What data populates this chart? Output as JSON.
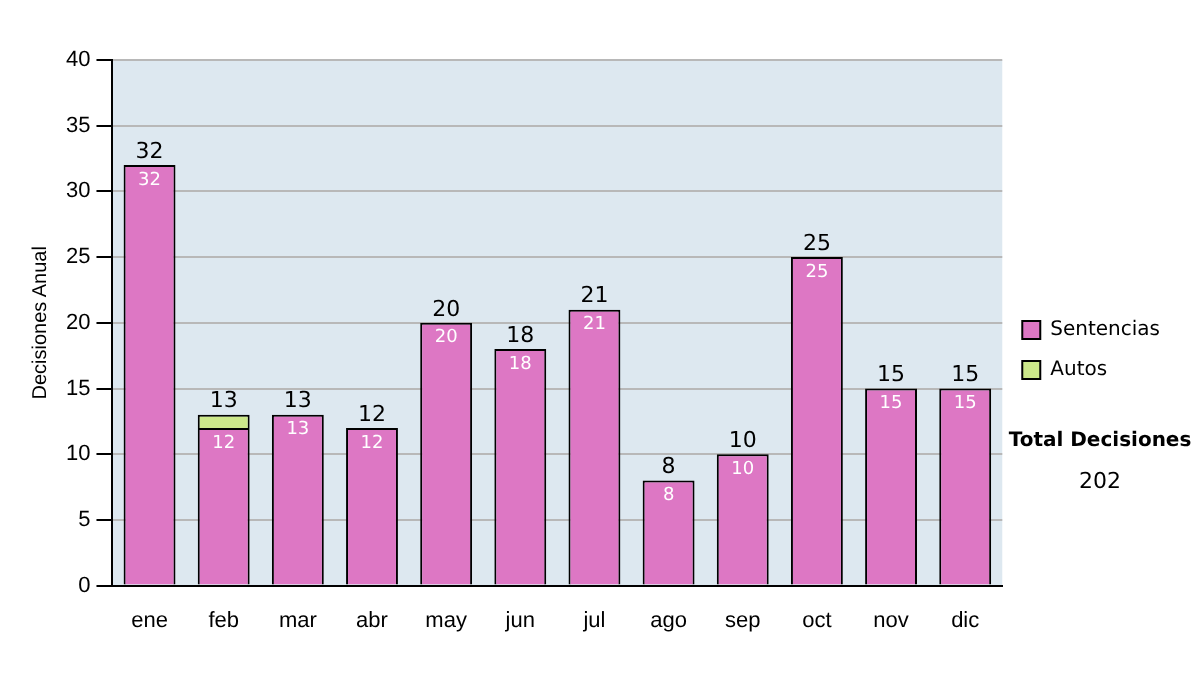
{
  "chart_data": {
    "type": "bar",
    "stacked": true,
    "ylabel": "Decisiones Anual",
    "categories": [
      "ene",
      "feb",
      "mar",
      "abr",
      "may",
      "jun",
      "jul",
      "ago",
      "sep",
      "oct",
      "nov",
      "dic"
    ],
    "series": [
      {
        "name": "Sentencias",
        "color": "#dd77c4",
        "values": [
          32,
          12,
          13,
          12,
          20,
          18,
          21,
          8,
          10,
          25,
          15,
          15
        ],
        "value_labels": [
          "32",
          "12",
          "13",
          "12",
          "20",
          "18",
          "21",
          "8",
          "10",
          "25",
          "15",
          "15"
        ]
      },
      {
        "name": "Autos",
        "color": "#cce88a",
        "values": [
          null,
          1,
          null,
          null,
          null,
          null,
          null,
          null,
          null,
          null,
          null,
          null
        ]
      }
    ],
    "totals": [
      "32",
      "13",
      "13",
      "12",
      "20",
      "18",
      "21",
      "8",
      "10",
      "25",
      "15",
      "15"
    ],
    "ylim": [
      0,
      40
    ],
    "yticks": [
      0,
      5,
      10,
      15,
      20,
      25,
      30,
      35,
      40
    ],
    "grid": "y",
    "legend": "right",
    "annotations": [
      "Total Decisiones",
      "202"
    ]
  }
}
